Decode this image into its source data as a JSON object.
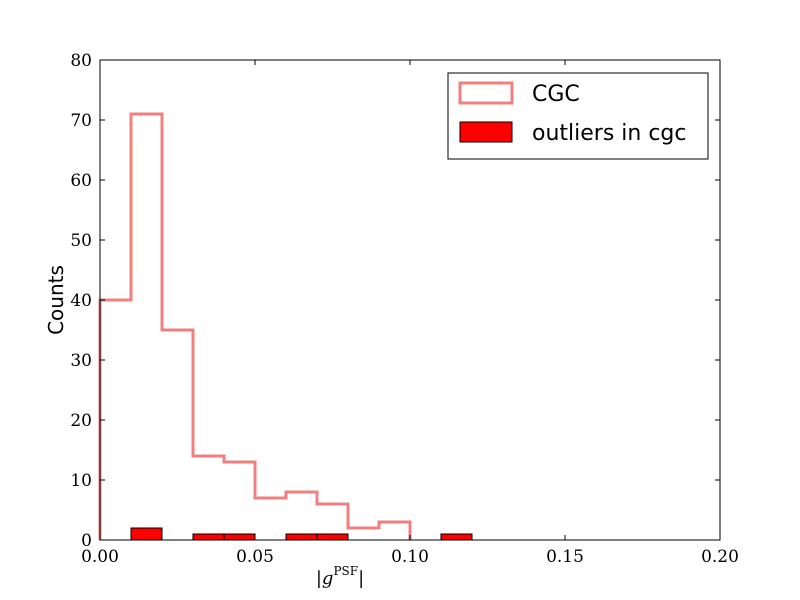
{
  "chart_data": {
    "type": "histogram",
    "title": "",
    "xlabel": "|g^PSF|",
    "ylabel": "Counts",
    "xlim": [
      0.0,
      0.2
    ],
    "ylim": [
      0,
      80
    ],
    "xticks": [
      0.0,
      0.05,
      0.1,
      0.15,
      0.2
    ],
    "xtick_labels": [
      "0.00",
      "0.05",
      "0.10",
      "0.15",
      "0.20"
    ],
    "yticks": [
      0,
      10,
      20,
      30,
      40,
      50,
      60,
      70,
      80
    ],
    "ytick_labels": [
      "0",
      "10",
      "20",
      "30",
      "40",
      "50",
      "60",
      "70",
      "80"
    ],
    "grid": false,
    "legend_position": "top-right",
    "series": [
      {
        "name": "CGC",
        "style": "step",
        "color": "#f08080",
        "bin_edges": [
          0.0,
          0.01,
          0.02,
          0.03,
          0.04,
          0.05,
          0.06,
          0.07,
          0.08,
          0.09,
          0.1
        ],
        "counts": [
          40,
          71,
          35,
          14,
          13,
          7,
          8,
          6,
          2,
          3
        ]
      },
      {
        "name": "outliers in cgc",
        "style": "bar",
        "color": "#ff0000",
        "bin_edges": [
          0.01,
          0.02,
          0.03,
          0.04,
          0.05,
          0.06,
          0.07,
          0.08,
          0.09,
          0.1,
          0.11,
          0.12
        ],
        "counts": [
          2,
          0,
          1,
          1,
          0,
          1,
          1,
          0,
          0,
          0,
          1
        ]
      }
    ]
  }
}
